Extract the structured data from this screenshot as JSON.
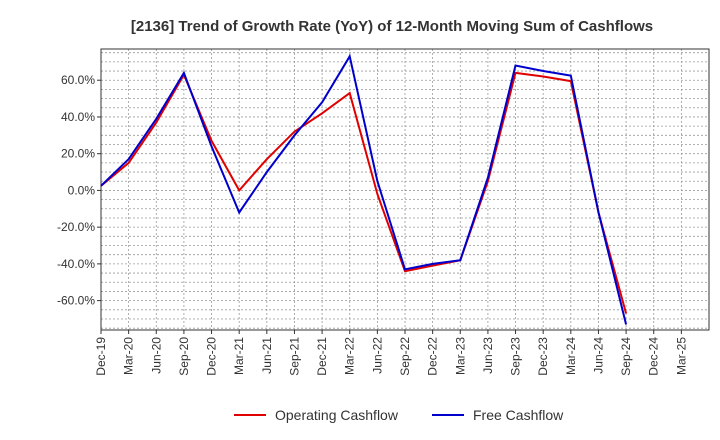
{
  "chart_data": {
    "type": "line",
    "title": "[2136]  Trend of Growth Rate (YoY) of 12-Month Moving Sum of Cashflows",
    "xlabel": "",
    "ylabel": "",
    "x": [
      "Dec-19",
      "Mar-20",
      "Jun-20",
      "Sep-20",
      "Dec-20",
      "Mar-21",
      "Jun-21",
      "Sep-21",
      "Dec-21",
      "Mar-22",
      "Jun-22",
      "Sep-22",
      "Dec-22",
      "Mar-23",
      "Jun-23",
      "Sep-23",
      "Dec-23",
      "Mar-24",
      "Jun-24",
      "Sep-24",
      "Dec-24",
      "Mar-25"
    ],
    "ylim": [
      -76,
      77
    ],
    "yticks": [
      60,
      40,
      20,
      0,
      -20,
      -40,
      -60
    ],
    "ytick_labels": [
      "60.0%",
      "40.0%",
      "20.0%",
      "0.0%",
      "-20.0%",
      "-40.0%",
      "-60.0%"
    ],
    "grid": true,
    "legend_position": "bottom",
    "series": [
      {
        "name": "Operating Cashflow",
        "color": "#e00000",
        "values": [
          2.5,
          15,
          37,
          63,
          27,
          0,
          17,
          32,
          42,
          53,
          -2,
          -44,
          -41,
          -38,
          5,
          64,
          62,
          59.5,
          -12,
          -67,
          null,
          null
        ]
      },
      {
        "name": "Free Cashflow",
        "color": "#0000cc",
        "values": [
          2.5,
          17,
          39,
          64,
          24,
          -12,
          10,
          30,
          48,
          73,
          5,
          -43,
          -40,
          -38,
          7,
          68,
          65,
          62.5,
          -12,
          -73,
          null,
          null
        ]
      }
    ]
  }
}
